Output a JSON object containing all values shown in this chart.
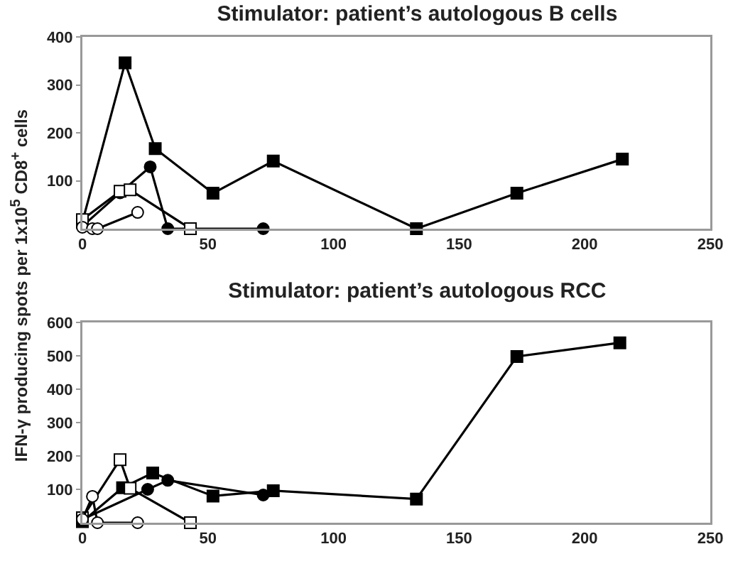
{
  "chart_data": [
    {
      "type": "line",
      "title": "Stimulator: patient’s autologous B cells",
      "ylabel": "IFN-γ producing spots per 1x10$^{5}$ CD8$^{+}$ cells",
      "xlim": [
        0,
        250
      ],
      "xticks": [
        0,
        50,
        100,
        150,
        200,
        250
      ],
      "ylim": [
        0,
        400
      ],
      "yticks": [
        100,
        200,
        300,
        400
      ],
      "grid": false,
      "line_style": "solid",
      "series": [
        {
          "color": "#000000",
          "marker": "square",
          "x": [
            0,
            17,
            29,
            52,
            76,
            133,
            173,
            215
          ],
          "values": [
            14,
            346,
            167,
            74,
            141,
            0,
            74,
            145
          ]
        },
        {
          "color": "#000000",
          "marker": "circle",
          "x": [
            0,
            15,
            27,
            34,
            72
          ],
          "values": [
            5,
            75,
            129,
            0,
            0
          ]
        },
        {
          "color": "#000000",
          "marker": "square-open",
          "x": [
            0,
            15,
            19,
            43
          ],
          "values": [
            19,
            78,
            81,
            0
          ]
        },
        {
          "color": "#000000",
          "marker": "circle-open",
          "x": [
            0,
            4,
            6,
            22
          ],
          "values": [
            3,
            0,
            0,
            34
          ]
        }
      ]
    },
    {
      "type": "line",
      "title": "Stimulator: patient’s autologous RCC",
      "xlim": [
        0,
        250
      ],
      "xticks": [
        0,
        50,
        100,
        150,
        200,
        250
      ],
      "ylim": [
        0,
        600
      ],
      "yticks": [
        100,
        200,
        300,
        400,
        500,
        600
      ],
      "grid": false,
      "line_style": "solid",
      "series": [
        {
          "color": "#000000",
          "marker": "square",
          "x": [
            0,
            16,
            28,
            52,
            76,
            133,
            173,
            214
          ],
          "values": [
            3,
            105,
            149,
            80,
            96,
            71,
            498,
            539
          ]
        },
        {
          "color": "#000000",
          "marker": "circle",
          "x": [
            0,
            26,
            34,
            72
          ],
          "values": [
            10,
            100,
            127,
            83
          ]
        },
        {
          "color": "#000000",
          "marker": "square-open",
          "x": [
            0,
            15,
            19,
            43
          ],
          "values": [
            15,
            189,
            103,
            0
          ]
        },
        {
          "color": "#000000",
          "marker": "circle-open",
          "x": [
            0,
            4,
            6,
            22
          ],
          "values": [
            10,
            79,
            0,
            0
          ]
        }
      ]
    }
  ]
}
